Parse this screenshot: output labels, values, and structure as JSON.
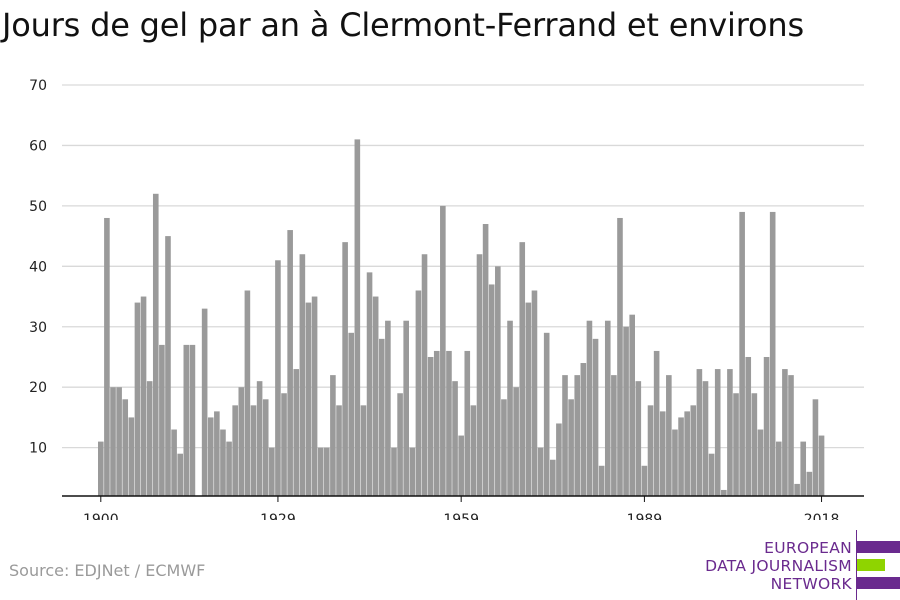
{
  "title": "Jours de gel par an à Clermont-Ferrand et environs",
  "source": "Source: EDJNet / ECMWF",
  "logo": {
    "line1": "EUROPEAN",
    "line2": "DATA JOURNALISM",
    "line3": "NETWORK",
    "purple": "#6a2a8e",
    "green": "#8fd400"
  },
  "chart_data": {
    "type": "bar",
    "bar_color": "#9a9a9a",
    "grid": true,
    "ylim": [
      2,
      70
    ],
    "yticks": [
      10,
      20,
      30,
      40,
      50,
      60,
      70
    ],
    "xticks": [
      1900,
      1929,
      1959,
      1989,
      2018
    ],
    "x": [
      1900,
      1901,
      1902,
      1903,
      1904,
      1905,
      1906,
      1907,
      1908,
      1909,
      1910,
      1911,
      1912,
      1913,
      1914,
      1915,
      1916,
      1917,
      1918,
      1919,
      1920,
      1921,
      1922,
      1923,
      1924,
      1925,
      1926,
      1927,
      1928,
      1929,
      1930,
      1931,
      1932,
      1933,
      1934,
      1935,
      1936,
      1937,
      1938,
      1939,
      1940,
      1941,
      1942,
      1943,
      1944,
      1945,
      1946,
      1947,
      1948,
      1949,
      1950,
      1951,
      1952,
      1953,
      1954,
      1955,
      1956,
      1957,
      1958,
      1959,
      1960,
      1961,
      1962,
      1963,
      1964,
      1965,
      1966,
      1967,
      1968,
      1969,
      1970,
      1971,
      1972,
      1973,
      1974,
      1975,
      1976,
      1977,
      1978,
      1979,
      1980,
      1981,
      1982,
      1983,
      1984,
      1985,
      1986,
      1987,
      1988,
      1989,
      1990,
      1991,
      1992,
      1993,
      1994,
      1995,
      1996,
      1997,
      1998,
      1999,
      2000,
      2001,
      2002,
      2003,
      2004,
      2005,
      2006,
      2007,
      2008,
      2009,
      2010,
      2011,
      2012,
      2013,
      2014,
      2015,
      2016,
      2017,
      2018
    ],
    "values": [
      11,
      48,
      20,
      20,
      18,
      15,
      34,
      35,
      21,
      52,
      27,
      45,
      13,
      9,
      27,
      27,
      null,
      33,
      15,
      16,
      13,
      11,
      17,
      20,
      36,
      17,
      21,
      18,
      10,
      41,
      19,
      46,
      23,
      42,
      34,
      35,
      10,
      10,
      22,
      17,
      44,
      29,
      61,
      17,
      39,
      35,
      28,
      31,
      10,
      19,
      31,
      10,
      36,
      42,
      25,
      26,
      50,
      26,
      21,
      12,
      26,
      17,
      42,
      47,
      37,
      40,
      18,
      31,
      20,
      44,
      34,
      36,
      10,
      29,
      8,
      14,
      22,
      18,
      22,
      24,
      31,
      28,
      7,
      31,
      22,
      48,
      30,
      32,
      21,
      7,
      17,
      26,
      16,
      22,
      13,
      15,
      16,
      17,
      23,
      21,
      9,
      23,
      3,
      23,
      19,
      49,
      25,
      19,
      13,
      25,
      49,
      11,
      23,
      22,
      4,
      11,
      6,
      18,
      12
    ]
  }
}
